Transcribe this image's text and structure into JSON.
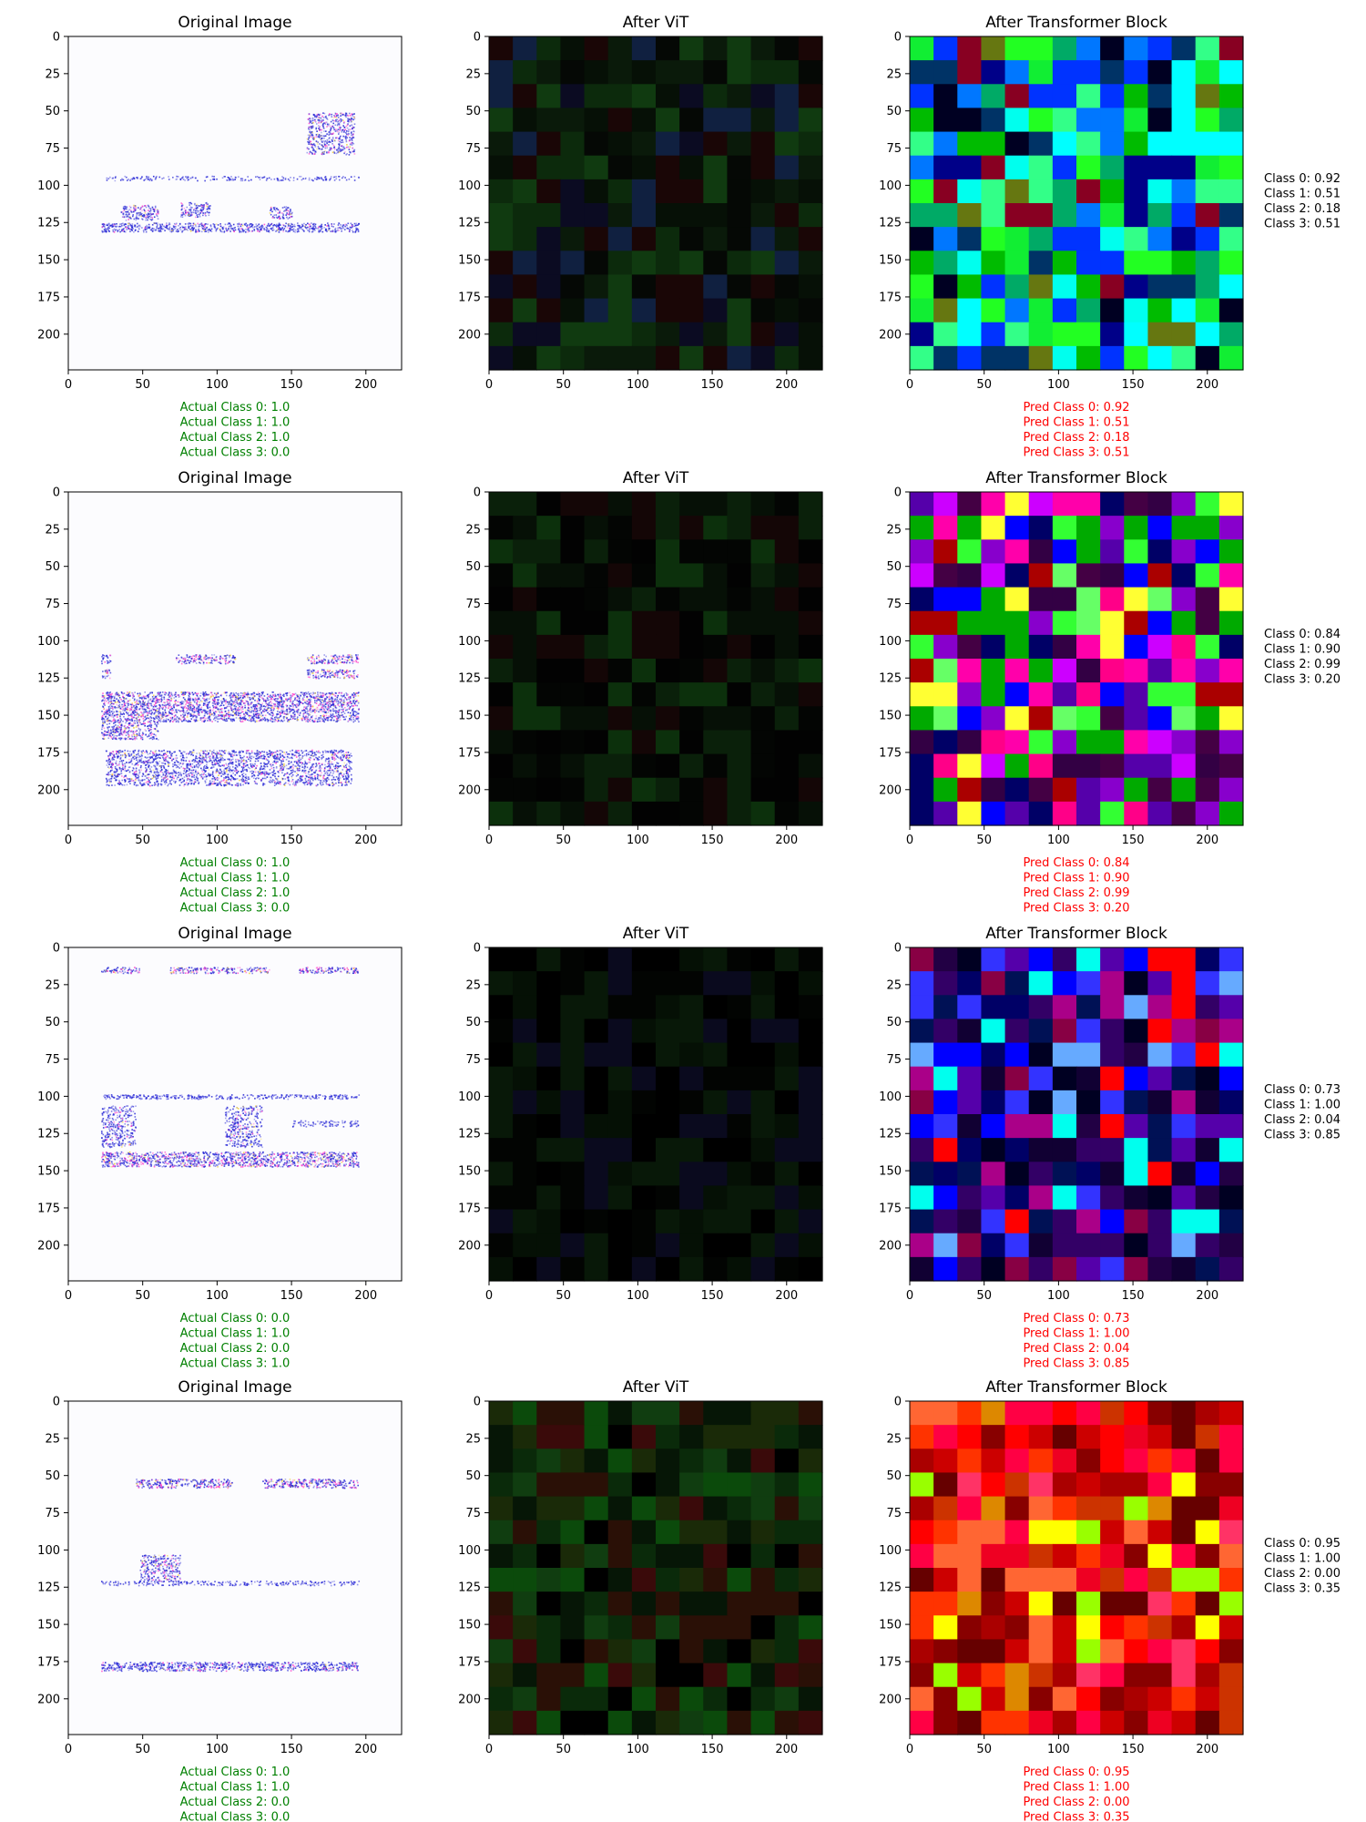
{
  "chart_data": {
    "type": "heatmap",
    "columns": [
      "Original Image",
      "After ViT",
      "After Transformer Block"
    ],
    "x_ticks": [
      0,
      50,
      100,
      150,
      200
    ],
    "y_ticks": [
      0,
      25,
      50,
      75,
      100,
      125,
      150,
      175,
      200
    ],
    "xlim": [
      0,
      224
    ],
    "ylim": [
      224,
      0
    ],
    "rows": [
      {
        "original_title": "Original Image",
        "vit_title": "After ViT",
        "block_title": "After Transformer Block",
        "actual": [
          "Actual Class 0: 1.0",
          "Actual Class 1: 1.0",
          "Actual Class 2: 1.0",
          "Actual Class 3: 0.0"
        ],
        "pred": [
          "Pred Class 0: 0.92",
          "Pred Class 1: 0.51",
          "Pred Class 2: 0.18",
          "Pred Class 3: 0.51"
        ],
        "side": [
          "Class 0: 0.92",
          "Class 1: 0.51",
          "Class 2: 0.18",
          "Class 3: 0.51"
        ],
        "actual_values": [
          1.0,
          1.0,
          1.0,
          0.0
        ],
        "pred_values": [
          0.92,
          0.51,
          0.18,
          0.51
        ],
        "vit_palette": [
          "#050805",
          "#0a1a0a",
          "#0c2a0c",
          "#103a10",
          "#061006",
          "#0b0b22",
          "#102040",
          "#1a0606"
        ],
        "block_palette": [
          "#22ff22",
          "#11ee33",
          "#33ff88",
          "#00ffee",
          "#0033ff",
          "#000088",
          "#0077ff",
          "#003366",
          "#00bb00",
          "#880022",
          "#667711",
          "#00ffff",
          "#000022",
          "#00aa66"
        ],
        "vit_seed": 3,
        "block_seed": 11
      },
      {
        "original_title": "Original Image",
        "vit_title": "After ViT",
        "block_title": "After Transformer Block",
        "actual": [
          "Actual Class 0: 1.0",
          "Actual Class 1: 1.0",
          "Actual Class 2: 1.0",
          "Actual Class 3: 0.0"
        ],
        "pred": [
          "Pred Class 0: 0.84",
          "Pred Class 1: 0.90",
          "Pred Class 2: 0.99",
          "Pred Class 3: 0.20"
        ],
        "side": [
          "Class 0: 0.84",
          "Class 1: 0.90",
          "Class 2: 0.99",
          "Class 3: 0.20"
        ],
        "actual_values": [
          1.0,
          1.0,
          1.0,
          0.0
        ],
        "pred_values": [
          0.84,
          0.9,
          0.99,
          0.2
        ],
        "vit_palette": [
          "#030503",
          "#061006",
          "#0a200a",
          "#0c300c",
          "#140606",
          "#020202"
        ],
        "block_palette": [
          "#33ff33",
          "#66ff66",
          "#cc00ff",
          "#8800cc",
          "#ff0088",
          "#330044",
          "#0000ff",
          "#aa0000",
          "#440044",
          "#ff00aa",
          "#5500aa",
          "#00aa00",
          "#000066",
          "#ffff33"
        ],
        "vit_seed": 5,
        "block_seed": 17
      },
      {
        "original_title": "Original Image",
        "vit_title": "After ViT",
        "block_title": "After Transformer Block",
        "actual": [
          "Actual Class 0: 0.0",
          "Actual Class 1: 1.0",
          "Actual Class 2: 0.0",
          "Actual Class 3: 1.0"
        ],
        "pred": [
          "Pred Class 0: 0.73",
          "Pred Class 1: 1.00",
          "Pred Class 2: 0.04",
          "Pred Class 3: 0.85"
        ],
        "side": [
          "Class 0: 0.73",
          "Class 1: 1.00",
          "Class 2: 0.04",
          "Class 3: 0.85"
        ],
        "actual_values": [
          0.0,
          1.0,
          0.0,
          1.0
        ],
        "pred_values": [
          0.73,
          1.0,
          0.04,
          0.85
        ],
        "vit_palette": [
          "#000000",
          "#020402",
          "#051005",
          "#081808",
          "#0a0a1e"
        ],
        "block_palette": [
          "#000066",
          "#220044",
          "#0000ff",
          "#3333ff",
          "#880044",
          "#5500aa",
          "#000022",
          "#110033",
          "#aa0088",
          "#330066",
          "#ff0000",
          "#00ffee",
          "#66aaff",
          "#001155"
        ],
        "vit_seed": 7,
        "block_seed": 23
      },
      {
        "original_title": "Original Image",
        "vit_title": "After ViT",
        "block_title": "After Transformer Block",
        "actual": [
          "Actual Class 0: 1.0",
          "Actual Class 1: 1.0",
          "Actual Class 2: 0.0",
          "Actual Class 3: 0.0"
        ],
        "pred": [
          "Pred Class 0: 0.95",
          "Pred Class 1: 1.00",
          "Pred Class 2: 0.00",
          "Pred Class 3: 0.35"
        ],
        "side": [
          "Class 0: 0.95",
          "Class 1: 1.00",
          "Class 2: 0.00",
          "Class 3: 0.35"
        ],
        "actual_values": [
          1.0,
          1.0,
          0.0,
          0.0
        ],
        "pred_values": [
          0.95,
          1.0,
          0.0,
          0.35
        ],
        "vit_palette": [
          "#0a2a0a",
          "#103d10",
          "#061606",
          "#2a1006",
          "#3a0a0a",
          "#1a2a08",
          "#000000",
          "#0b4a0b"
        ],
        "block_palette": [
          "#ff0000",
          "#ee0022",
          "#cc0000",
          "#aa0000",
          "#ff3300",
          "#ff0044",
          "#ffff00",
          "#99ff00",
          "#ff3366",
          "#cc3300",
          "#880000",
          "#dd8800",
          "#660000",
          "#ff6633"
        ],
        "vit_seed": 13,
        "block_seed": 29
      }
    ]
  },
  "colors": {
    "actual_text": "#008000",
    "pred_text": "#ff0000",
    "side_text": "#000000",
    "original_bg": "#fcfcfe",
    "spectrogram_blue": "#2b2bd6",
    "spectrogram_pink": "#ff44cc",
    "spectrogram_yellow": "#f0d040"
  }
}
